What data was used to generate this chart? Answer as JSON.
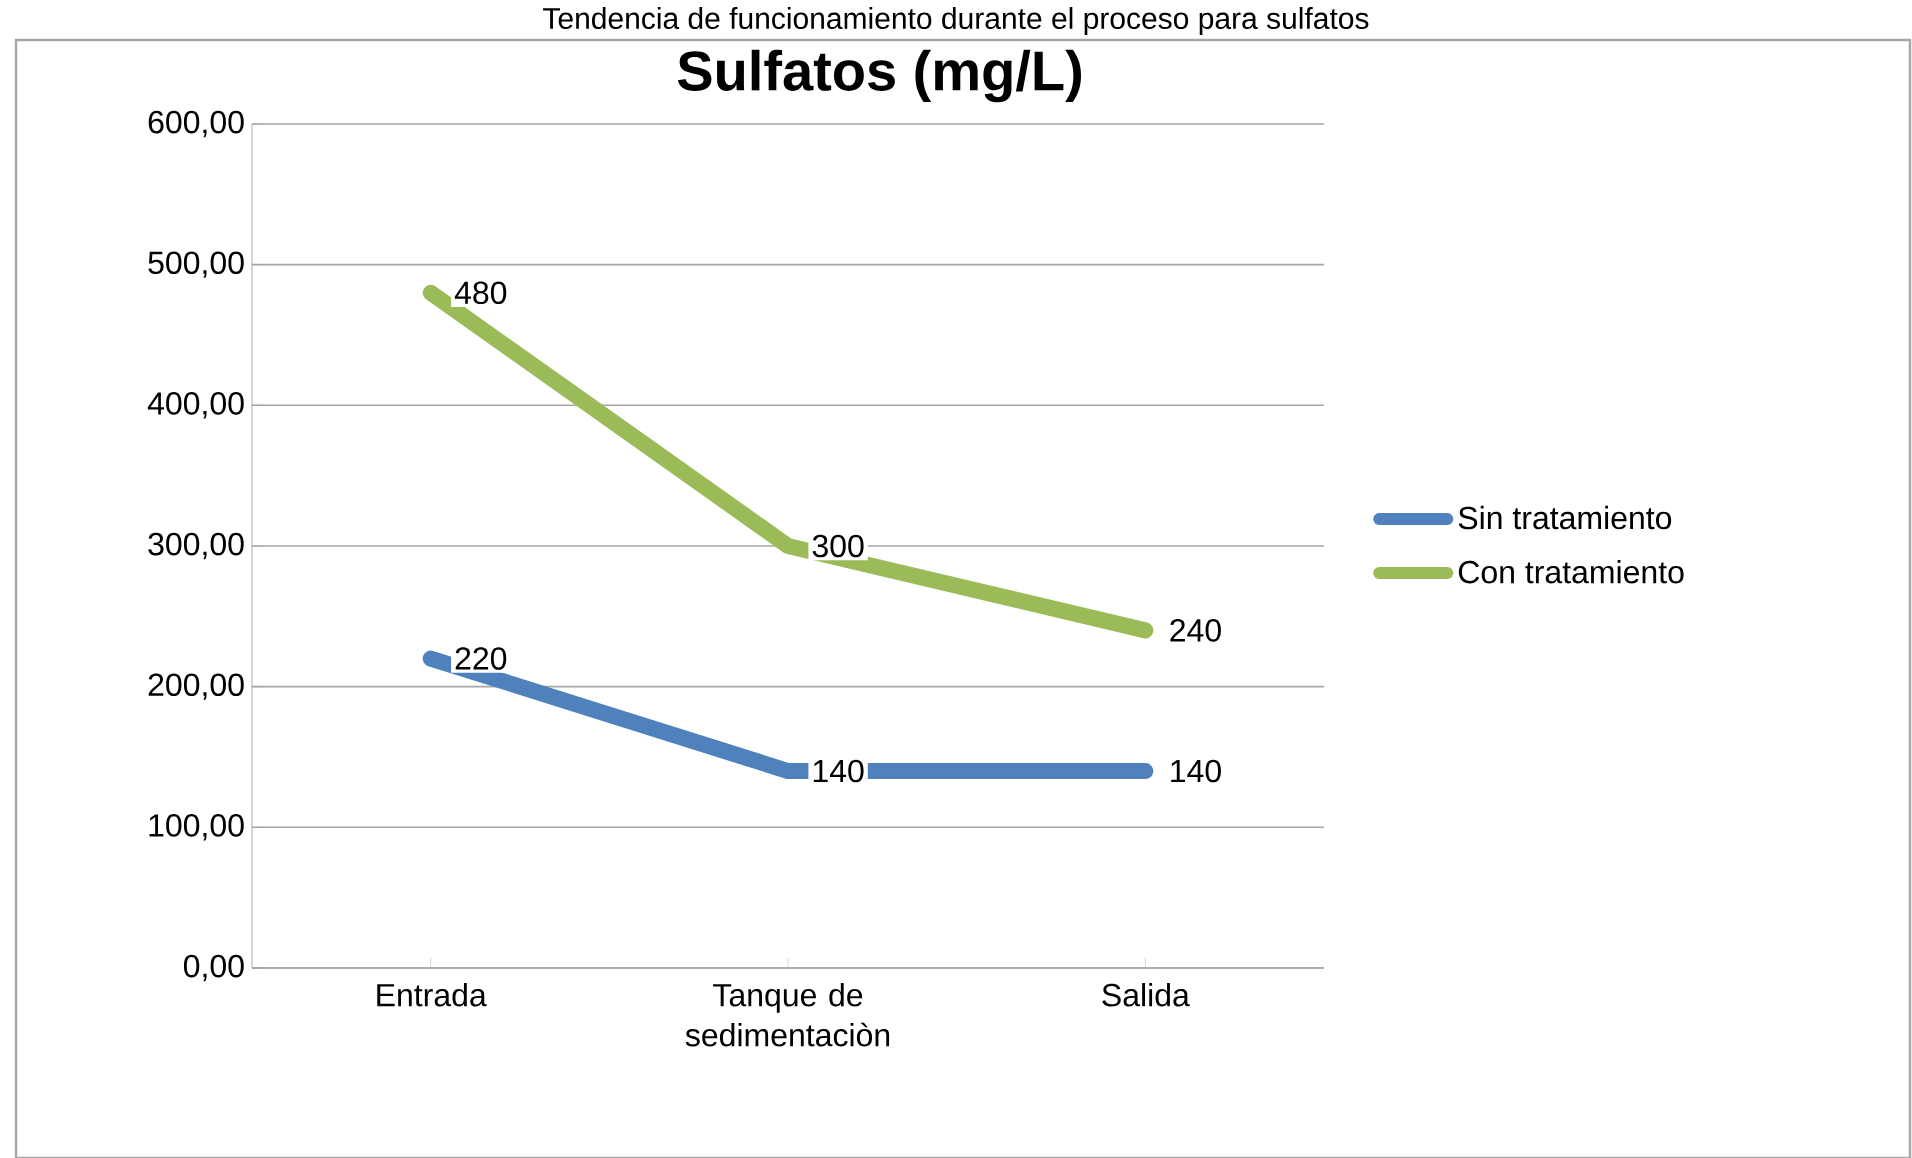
{
  "chart_data": {
    "type": "line",
    "title": "Sulfatos (mg/L)",
    "annotations": [
      "Tendencia de funcionamiento durante el proceso para sulfatos"
    ],
    "categories": [
      "Entrada",
      "Tanque de sedimentaciòn",
      "Salida"
    ],
    "series": [
      {
        "name": "Sin tratamiento",
        "color": "#4f81bd",
        "values": [
          220,
          140,
          140
        ]
      },
      {
        "name": "Con tratamiento",
        "color": "#9bbb59",
        "values": [
          480,
          300,
          240
        ]
      }
    ],
    "ylim": [
      0,
      600
    ],
    "yticks": [
      {
        "value": 0,
        "label": "0,00"
      },
      {
        "value": 100,
        "label": "100,00"
      },
      {
        "value": 200,
        "label": "200,00"
      },
      {
        "value": 300,
        "label": "300,00"
      },
      {
        "value": 400,
        "label": "400,00"
      },
      {
        "value": 500,
        "label": "500,00"
      },
      {
        "value": 600,
        "label": "600,00"
      }
    ],
    "grid": "y",
    "legend": "right",
    "data_labels": true,
    "marker": "none",
    "line_style": "solid"
  }
}
